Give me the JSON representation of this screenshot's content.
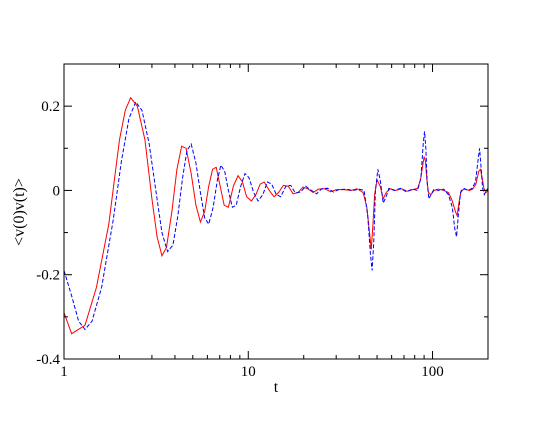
{
  "chart_data": {
    "type": "line",
    "title": "",
    "xlabel": "t",
    "ylabel": "<v(0)v(t)>",
    "x_scale": "log",
    "xlim": [
      1,
      200
    ],
    "ylim": [
      -0.4,
      0.3
    ],
    "x_ticks": [
      {
        "value": 1,
        "label": "1"
      },
      {
        "value": 10,
        "label": "10"
      },
      {
        "value": 100,
        "label": "100"
      }
    ],
    "y_ticks": [
      {
        "value": -0.4,
        "label": "-0.4"
      },
      {
        "value": -0.2,
        "label": "-0.2"
      },
      {
        "value": 0,
        "label": "0"
      },
      {
        "value": 0.2,
        "label": "0.2"
      }
    ],
    "grid": false,
    "legend": "none",
    "series": [
      {
        "color": "#ff0000",
        "style": "solid",
        "points": [
          [
            1.0,
            -0.29
          ],
          [
            1.1,
            -0.34
          ],
          [
            1.3,
            -0.32
          ],
          [
            1.5,
            -0.23
          ],
          [
            1.75,
            -0.08
          ],
          [
            2.0,
            0.12
          ],
          [
            2.15,
            0.19
          ],
          [
            2.3,
            0.22
          ],
          [
            2.5,
            0.2
          ],
          [
            2.75,
            0.12
          ],
          [
            3.0,
            -0.02
          ],
          [
            3.2,
            -0.11
          ],
          [
            3.4,
            -0.155
          ],
          [
            3.6,
            -0.135
          ],
          [
            3.85,
            -0.05
          ],
          [
            4.1,
            0.05
          ],
          [
            4.35,
            0.105
          ],
          [
            4.6,
            0.1
          ],
          [
            4.9,
            0.04
          ],
          [
            5.2,
            -0.035
          ],
          [
            5.5,
            -0.075
          ],
          [
            5.8,
            -0.05
          ],
          [
            6.1,
            0.01
          ],
          [
            6.4,
            0.05
          ],
          [
            6.7,
            0.055
          ],
          [
            7.0,
            0.015
          ],
          [
            7.4,
            -0.035
          ],
          [
            7.8,
            -0.04
          ],
          [
            8.3,
            0.01
          ],
          [
            8.8,
            0.035
          ],
          [
            9.3,
            0.02
          ],
          [
            9.8,
            -0.015
          ],
          [
            10.4,
            -0.025
          ],
          [
            11.0,
            -0.01
          ],
          [
            11.6,
            0.015
          ],
          [
            12.2,
            0.02
          ],
          [
            13.0,
            0.0
          ],
          [
            13.8,
            -0.015
          ],
          [
            14.6,
            -0.005
          ],
          [
            15.5,
            0.012
          ],
          [
            16.5,
            0.01
          ],
          [
            17.5,
            -0.008
          ],
          [
            18.6,
            -0.005
          ],
          [
            19.8,
            0.008
          ],
          [
            21.0,
            0.004
          ],
          [
            22.5,
            -0.005
          ],
          [
            24.0,
            0.003
          ],
          [
            26.0,
            0.004
          ],
          [
            28.0,
            -0.003
          ],
          [
            30.0,
            0.002
          ],
          [
            33.0,
            0.002
          ],
          [
            36.0,
            0.0
          ],
          [
            39.0,
            0.004
          ],
          [
            42.0,
            -0.005
          ],
          [
            44.0,
            -0.04
          ],
          [
            45.5,
            -0.1
          ],
          [
            46.5,
            -0.14
          ],
          [
            47.5,
            -0.08
          ],
          [
            48.5,
            -0.01
          ],
          [
            50.0,
            0.025
          ],
          [
            52.0,
            0.01
          ],
          [
            54.0,
            -0.02
          ],
          [
            56.0,
            -0.005
          ],
          [
            59.0,
            0.004
          ],
          [
            63.0,
            0.0
          ],
          [
            68.0,
            0.004
          ],
          [
            73.0,
            -0.002
          ],
          [
            78.0,
            0.002
          ],
          [
            83.0,
            0.005
          ],
          [
            86.0,
            0.025
          ],
          [
            88.5,
            0.06
          ],
          [
            90.0,
            0.08
          ],
          [
            91.5,
            0.07
          ],
          [
            93.0,
            0.03
          ],
          [
            95.0,
            -0.005
          ],
          [
            98.0,
            -0.01
          ],
          [
            102.0,
            0.0
          ],
          [
            108.0,
            0.003
          ],
          [
            115.0,
            0.0
          ],
          [
            122.0,
            -0.005
          ],
          [
            128.0,
            -0.025
          ],
          [
            133.0,
            -0.05
          ],
          [
            136.0,
            -0.06
          ],
          [
            139.0,
            -0.03
          ],
          [
            143.0,
            0.0
          ],
          [
            150.0,
            0.003
          ],
          [
            158.0,
            0.0
          ],
          [
            165.0,
            0.003
          ],
          [
            172.0,
            0.015
          ],
          [
            178.0,
            0.045
          ],
          [
            182.0,
            0.05
          ],
          [
            186.0,
            0.03
          ],
          [
            190.0,
            0.005
          ],
          [
            195.0,
            -0.005
          ],
          [
            200.0,
            0.0
          ]
        ]
      },
      {
        "color": "#0000ff",
        "style": "dashed",
        "points": [
          [
            1.0,
            -0.19
          ],
          [
            1.1,
            -0.25
          ],
          [
            1.2,
            -0.31
          ],
          [
            1.3,
            -0.33
          ],
          [
            1.42,
            -0.31
          ],
          [
            1.6,
            -0.23
          ],
          [
            1.85,
            -0.07
          ],
          [
            2.05,
            0.07
          ],
          [
            2.25,
            0.17
          ],
          [
            2.45,
            0.21
          ],
          [
            2.65,
            0.19
          ],
          [
            2.9,
            0.11
          ],
          [
            3.15,
            0.0
          ],
          [
            3.4,
            -0.1
          ],
          [
            3.65,
            -0.145
          ],
          [
            3.9,
            -0.13
          ],
          [
            4.15,
            -0.06
          ],
          [
            4.4,
            0.03
          ],
          [
            4.65,
            0.095
          ],
          [
            4.9,
            0.11
          ],
          [
            5.2,
            0.065
          ],
          [
            5.5,
            -0.005
          ],
          [
            5.8,
            -0.065
          ],
          [
            6.1,
            -0.08
          ],
          [
            6.45,
            -0.04
          ],
          [
            6.8,
            0.025
          ],
          [
            7.1,
            0.06
          ],
          [
            7.45,
            0.045
          ],
          [
            7.8,
            0.0
          ],
          [
            8.2,
            -0.04
          ],
          [
            8.6,
            -0.035
          ],
          [
            9.1,
            0.01
          ],
          [
            9.6,
            0.04
          ],
          [
            10.1,
            0.03
          ],
          [
            10.7,
            -0.005
          ],
          [
            11.3,
            -0.025
          ],
          [
            12.0,
            -0.01
          ],
          [
            12.7,
            0.02
          ],
          [
            13.4,
            0.015
          ],
          [
            14.2,
            -0.01
          ],
          [
            15.0,
            -0.015
          ],
          [
            16.0,
            0.01
          ],
          [
            17.0,
            0.012
          ],
          [
            18.0,
            -0.006
          ],
          [
            19.2,
            -0.004
          ],
          [
            20.5,
            0.01
          ],
          [
            22.0,
            0.0
          ],
          [
            23.5,
            -0.008
          ],
          [
            25.0,
            0.004
          ],
          [
            27.0,
            0.005
          ],
          [
            29.0,
            -0.004
          ],
          [
            31.0,
            0.002
          ],
          [
            34.0,
            0.003
          ],
          [
            37.0,
            0.0
          ],
          [
            40.0,
            0.003
          ],
          [
            42.5,
            0.0
          ],
          [
            44.5,
            -0.06
          ],
          [
            46.0,
            -0.15
          ],
          [
            47.0,
            -0.19
          ],
          [
            48.0,
            -0.12
          ],
          [
            49.0,
            0.0
          ],
          [
            50.5,
            0.05
          ],
          [
            52.0,
            0.025
          ],
          [
            54.0,
            -0.03
          ],
          [
            56.0,
            -0.015
          ],
          [
            58.0,
            0.005
          ],
          [
            62.0,
            0.0
          ],
          [
            67.0,
            0.005
          ],
          [
            72.0,
            -0.003
          ],
          [
            78.0,
            0.003
          ],
          [
            83.0,
            0.0
          ],
          [
            86.5,
            0.03
          ],
          [
            89.0,
            0.11
          ],
          [
            90.5,
            0.14
          ],
          [
            92.0,
            0.1
          ],
          [
            93.5,
            0.02
          ],
          [
            95.5,
            -0.02
          ],
          [
            98.0,
            -0.01
          ],
          [
            102.0,
            0.003
          ],
          [
            108.0,
            0.0
          ],
          [
            115.0,
            0.003
          ],
          [
            122.0,
            -0.01
          ],
          [
            128.0,
            -0.04
          ],
          [
            132.0,
            -0.09
          ],
          [
            135.0,
            -0.11
          ],
          [
            138.0,
            -0.06
          ],
          [
            142.0,
            -0.005
          ],
          [
            148.0,
            0.005
          ],
          [
            156.0,
            0.0
          ],
          [
            164.0,
            0.005
          ],
          [
            171.0,
            0.02
          ],
          [
            177.0,
            0.075
          ],
          [
            180.0,
            0.1
          ],
          [
            183.0,
            0.06
          ],
          [
            187.0,
            0.005
          ],
          [
            191.0,
            -0.01
          ],
          [
            196.0,
            0.0
          ],
          [
            200.0,
            0.005
          ]
        ]
      }
    ]
  }
}
